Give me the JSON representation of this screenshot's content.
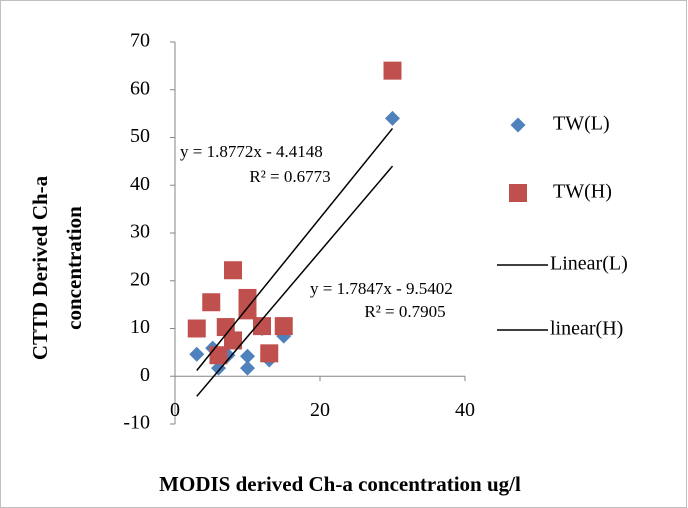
{
  "chart_data": {
    "type": "scatter",
    "x_label": "MODIS derived Ch-a concentration ug/l",
    "y_label": [
      "CTTD Derived Ch-a",
      "concentration"
    ],
    "xlim": [
      0,
      40
    ],
    "xticks": [
      0,
      20,
      40
    ],
    "ylim": [
      -10,
      70
    ],
    "yticks": [
      -10,
      0,
      10,
      20,
      30,
      40,
      50,
      60,
      70
    ],
    "grid": false,
    "legend": "right",
    "series": [
      {
        "name": "TW(L)",
        "color": "#4f81bd",
        "marker": "diamond",
        "x": [
          3,
          5.2,
          6,
          7.3,
          10,
          10,
          12,
          13,
          15,
          30
        ],
        "values": [
          4.6,
          5.9,
          1.7,
          4.4,
          4.2,
          1.7,
          10,
          3.4,
          8.4,
          54
        ]
      },
      {
        "name": "TW(H)",
        "color": "#c0504d",
        "marker": "square",
        "x": [
          3,
          5,
          6,
          7,
          8,
          8,
          10,
          10,
          12,
          13,
          15,
          30
        ],
        "values": [
          10,
          15.5,
          4.4,
          10.3,
          22.2,
          7.5,
          16.4,
          13.8,
          10.5,
          4.8,
          10.5,
          64
        ]
      }
    ],
    "trendlines": [
      {
        "name": "Linear(L)",
        "color": "#000000",
        "equation": "y = 1.8772x - 4.4148",
        "r2": "R² = 0.6773",
        "x": [
          3,
          30
        ],
        "values": [
          1.2,
          51.9
        ]
      },
      {
        "name": "linear(H)",
        "color": "#000000",
        "equation": "y = 1.7847x - 9.5402",
        "r2": "R² = 0.7905",
        "x": [
          3,
          30
        ],
        "values": [
          -4.2,
          44
        ]
      }
    ]
  }
}
